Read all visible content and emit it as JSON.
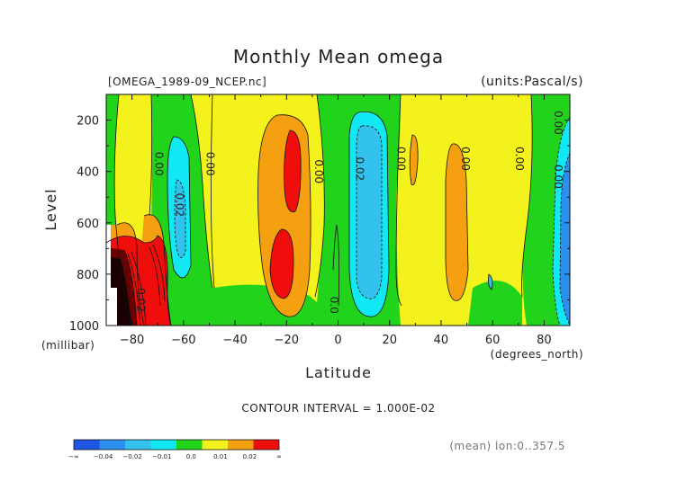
{
  "chart_data": {
    "type": "heatmap",
    "title": "Monthly Mean omega",
    "file_label": "[OMEGA_1989-09_NCEP.nc]",
    "units_label": "(units:Pascal/s)",
    "xlabel": "Latitude",
    "ylabel": "Level",
    "x_unit": "(degrees_north)",
    "y_unit": "(millibar)",
    "xlim": [
      -90,
      90
    ],
    "ylim": [
      1000,
      100
    ],
    "x_ticks": [
      -80,
      -60,
      -40,
      -20,
      0,
      20,
      40,
      60,
      80
    ],
    "x_tick_labels": [
      "−80",
      "−60",
      "−40",
      "−20",
      "0",
      "20",
      "40",
      "60",
      "80"
    ],
    "y_ticks": [
      200,
      400,
      600,
      800,
      1000
    ],
    "y_tick_labels": [
      "200",
      "400",
      "600",
      "800",
      "1000"
    ],
    "contour_interval_text": "CONTOUR INTERVAL = 1.000E-02",
    "mean_note": "(mean) lon:0..357.5",
    "contour_labels": [
      {
        "text": "0.00",
        "lat": -71,
        "lev": 370
      },
      {
        "text": "0.00",
        "lat": -51,
        "lev": 370
      },
      {
        "text": "0.02",
        "lat": -63,
        "lev": 530
      },
      {
        "text": "0.00",
        "lat": -9,
        "lev": 400
      },
      {
        "text": "0.02",
        "lat": 7,
        "lev": 390
      },
      {
        "text": "0.00",
        "lat": 23,
        "lev": 350
      },
      {
        "text": "0.00",
        "lat": 48,
        "lev": 350
      },
      {
        "text": "0.00",
        "lat": 69,
        "lev": 350
      },
      {
        "text": "0.00",
        "lat": 84,
        "lev": 210
      },
      {
        "text": "0.00",
        "lat": 84,
        "lev": 420
      },
      {
        "text": "0.02",
        "lat": -78,
        "lev": 900
      },
      {
        "text": "0.0",
        "lat": -3,
        "lev": 920
      }
    ],
    "colorbar": {
      "colors": [
        "#1e56e6",
        "#2b8ff0",
        "#33c2ee",
        "#11e8f4",
        "#22d31c",
        "#f4f21c",
        "#f4a010",
        "#f00e0c"
      ],
      "labels": [
        "−∞",
        "−0.04",
        "−0.02",
        "−0.01",
        "0.0",
        "0.01",
        "0.02",
        "∞"
      ]
    },
    "levels": [
      -0.04,
      -0.03,
      -0.02,
      -0.01,
      0.0,
      0.01,
      0.02
    ]
  }
}
